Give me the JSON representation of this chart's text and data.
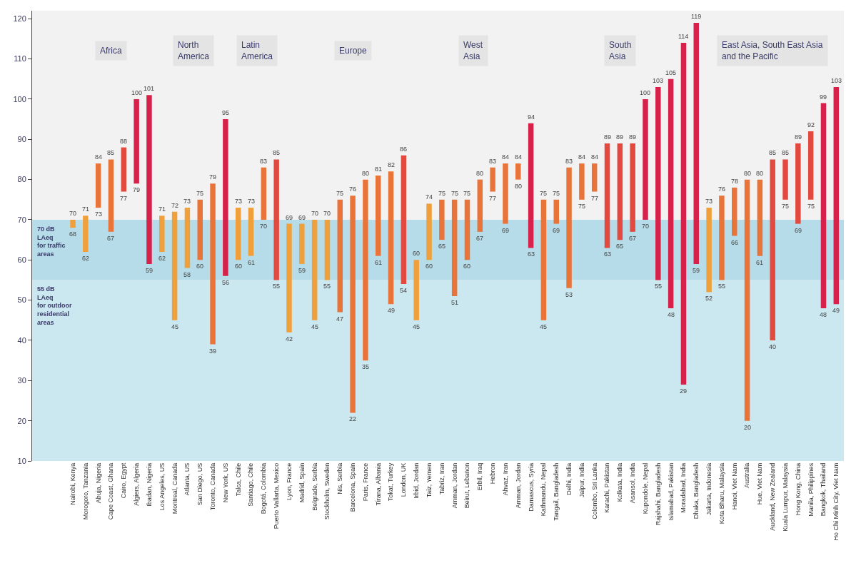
{
  "chart_data": {
    "type": "bar",
    "categories": [
      "Nairobi, Kenya",
      "Morogoro, Tanzania",
      "Abuja, Nigeria",
      "Cape Coast, Ghana",
      "Cairo, Egypt",
      "Algiers, Algeria",
      "Ibadan, Nigeria",
      "Los Angeles, US",
      "Montreal, Canada",
      "Atlanta, US",
      "San Diego, US",
      "Toronto, Canada",
      "New York, US",
      "Talca, Chile",
      "Santiago, Chile",
      "Bogotá, Colombia",
      "Puerto Vallarta, Mexico",
      "Lyon, France",
      "Madrid, Spain",
      "Belgrade, Serbia",
      "Stockholm, Sweden",
      "Nis, Serbia",
      "Barcelona, Spain",
      "Paris, France",
      "Tirana, Albania",
      "Tokat, Turkey",
      "London, UK",
      "Irbid, Jordan",
      "Taiz, Yemen",
      "Tabriz, Iran",
      "Amman, Jordan",
      "Beirut, Lebanon",
      "Erbil, Iraq",
      "Hebron",
      "Ahvaz, Iran",
      "Amman, Jordan",
      "Damascus, Syria",
      "Kathmandu, Nepal",
      "Tangail, Bangladesh",
      "Delhi, India",
      "Jaipur, India",
      "Colombo, Sri Lanka",
      "Karachi, Pakistan",
      "Kolkata, India",
      "Asansol, India",
      "Kupondole, Nepal",
      "Rajshahi, Bangladesh",
      "Islamabad, Pakistan",
      "Moradabad, India",
      "Dhaka, Bangladesh",
      "Jakarta, Indonesia",
      "Kota Bharu, Malaysia",
      "Hanoi, Viet Nam",
      "Australia",
      "Hue, Viet Nam",
      "Auckland, New Zealand",
      "Kuala Lumpur, Malaysia",
      "Hong Kong, China",
      "Manila, Philippines",
      "Bangkok, Thailand",
      "Ho Chi Minh City, Viet Nam"
    ],
    "base": [
      68,
      62,
      73,
      67,
      77,
      79,
      59,
      62,
      45,
      58,
      60,
      39,
      56,
      60,
      61,
      70,
      55,
      42,
      59,
      45,
      55,
      47,
      22,
      35,
      61,
      49,
      54,
      45,
      60,
      65,
      51,
      60,
      67,
      77,
      69,
      80,
      63,
      45,
      69,
      53,
      75,
      77,
      63,
      65,
      67,
      70,
      55,
      48,
      29,
      59,
      52,
      55,
      66,
      20,
      61,
      40,
      75,
      69,
      75,
      48,
      49
    ],
    "values": [
      2,
      9,
      11,
      18,
      11,
      21,
      42,
      9,
      27,
      15,
      15,
      40,
      39,
      13,
      12,
      13,
      30,
      27,
      10,
      25,
      15,
      28,
      54,
      45,
      20,
      33,
      32,
      15,
      14,
      10,
      24,
      15,
      13,
      6,
      15,
      4,
      31,
      30,
      6,
      30,
      9,
      7,
      26,
      24,
      22,
      30,
      48,
      57,
      85,
      60,
      21,
      21,
      12,
      60,
      19,
      45,
      10,
      20,
      17,
      51,
      54
    ],
    "colors": [
      "#f0a03a",
      "#f0a03a",
      "#e9743a",
      "#e9743a",
      "#e24a3f",
      "#d6224a",
      "#d6224a",
      "#f0a03a",
      "#f0a03a",
      "#f0a03a",
      "#e9743a",
      "#e9743a",
      "#d6224a",
      "#f0a03a",
      "#f0a03a",
      "#e9743a",
      "#e24a3f",
      "#f0a03a",
      "#f0a03a",
      "#f0a03a",
      "#f0a03a",
      "#e9743a",
      "#e9743a",
      "#e9743a",
      "#e9743a",
      "#e9743a",
      "#e24a3f",
      "#f0a03a",
      "#f0a03a",
      "#e9743a",
      "#e9743a",
      "#e9743a",
      "#e9743a",
      "#e9743a",
      "#e9743a",
      "#e9743a",
      "#d6224a",
      "#e9743a",
      "#e9743a",
      "#e9743a",
      "#e9743a",
      "#e9743a",
      "#e24a3f",
      "#e24a3f",
      "#e24a3f",
      "#d6224a",
      "#d6224a",
      "#d6224a",
      "#d6224a",
      "#d6224a",
      "#f0a03a",
      "#e9743a",
      "#e9743a",
      "#e9743a",
      "#e9743a",
      "#e24a3f",
      "#e24a3f",
      "#e24a3f",
      "#e24a3f",
      "#d6224a",
      "#d6224a"
    ],
    "grid": false,
    "ylim": [
      10,
      122
    ],
    "yticks": [
      10,
      20,
      30,
      40,
      50,
      60,
      70,
      80,
      90,
      100,
      110,
      120
    ],
    "bands": [
      {
        "axis": "y",
        "from": 55,
        "to": 70,
        "label": "70 dB\nLAeq\nfor traffic\nareas",
        "color": "#b5dce8"
      },
      {
        "axis": "y",
        "from": 10,
        "to": 55,
        "label": "55 dB\nLAeq\nfor outdoor\nresidential\nareas",
        "color": "#cbe7f0"
      }
    ],
    "annotations": [
      "Africa",
      "North\nAmerica",
      "Latin\nAmerica",
      "Europe",
      "West\nAsia",
      "South\nAsia",
      "East Asia, South East Asia\nand the Pacific",
      {
        "text": "70",
        "x": "Nairobi, Kenya",
        "y": 70
      },
      {
        "text": "68",
        "x": "Nairobi, Kenya",
        "y": 68
      },
      {
        "text": "71",
        "x": "Morogoro, Tanzania",
        "y": 71
      },
      {
        "text": "62",
        "x": "Morogoro, Tanzania",
        "y": 62
      },
      {
        "text": "84",
        "x": "Abuja, Nigeria",
        "y": 84
      },
      {
        "text": "73",
        "x": "Abuja, Nigeria",
        "y": 73
      },
      {
        "text": "85",
        "x": "Cape Coast, Ghana",
        "y": 85
      },
      {
        "text": "67",
        "x": "Cape Coast, Ghana",
        "y": 67
      },
      {
        "text": "88",
        "x": "Cairo, Egypt",
        "y": 88
      },
      {
        "text": "77",
        "x": "Cairo, Egypt",
        "y": 77
      },
      {
        "text": "100",
        "x": "Algiers, Algeria",
        "y": 100
      },
      {
        "text": "79",
        "x": "Algiers, Algeria",
        "y": 79
      },
      {
        "text": "101",
        "x": "Ibadan, Nigeria",
        "y": 101
      },
      {
        "text": "59",
        "x": "Ibadan, Nigeria",
        "y": 59
      },
      {
        "text": "71",
        "x": "Los Angeles, US",
        "y": 71
      },
      {
        "text": "62",
        "x": "Los Angeles, US",
        "y": 62
      },
      {
        "text": "72",
        "x": "Montreal, Canada",
        "y": 72
      },
      {
        "text": "45",
        "x": "Montreal, Canada",
        "y": 45
      },
      {
        "text": "73",
        "x": "Atlanta, US",
        "y": 73
      },
      {
        "text": "58",
        "x": "Atlanta, US",
        "y": 58
      },
      {
        "text": "75",
        "x": "San Diego, US",
        "y": 75
      },
      {
        "text": "60",
        "x": "San Diego, US",
        "y": 60
      },
      {
        "text": "79",
        "x": "Toronto, Canada",
        "y": 79
      },
      {
        "text": "39",
        "x": "Toronto, Canada",
        "y": 39
      },
      {
        "text": "95",
        "x": "New York, US",
        "y": 95
      },
      {
        "text": "56",
        "x": "New York, US",
        "y": 56
      },
      {
        "text": "73",
        "x": "Talca, Chile",
        "y": 73
      },
      {
        "text": "60",
        "x": "Talca, Chile",
        "y": 60
      },
      {
        "text": "73",
        "x": "Santiago, Chile",
        "y": 73
      },
      {
        "text": "61",
        "x": "Santiago, Chile",
        "y": 61
      },
      {
        "text": "83",
        "x": "Bogotá, Colombia",
        "y": 83
      },
      {
        "text": "70",
        "x": "Bogotá, Colombia",
        "y": 70
      },
      {
        "text": "85",
        "x": "Puerto Vallarta, Mexico",
        "y": 85
      },
      {
        "text": "55",
        "x": "Puerto Vallarta, Mexico",
        "y": 55
      },
      {
        "text": "69",
        "x": "Lyon, France",
        "y": 69
      },
      {
        "text": "42",
        "x": "Lyon, France",
        "y": 42
      },
      {
        "text": "69",
        "x": "Madrid, Spain",
        "y": 69
      },
      {
        "text": "59",
        "x": "Madrid, Spain",
        "y": 59
      },
      {
        "text": "70",
        "x": "Belgrade, Serbia",
        "y": 70
      },
      {
        "text": "45",
        "x": "Belgrade, Serbia",
        "y": 45
      },
      {
        "text": "70",
        "x": "Stockholm, Sweden",
        "y": 70
      },
      {
        "text": "55",
        "x": "Stockholm, Sweden",
        "y": 55
      },
      {
        "text": "75",
        "x": "Nis, Serbia",
        "y": 75
      },
      {
        "text": "47",
        "x": "Nis, Serbia",
        "y": 47
      },
      {
        "text": "76",
        "x": "Barcelona, Spain",
        "y": 76
      },
      {
        "text": "22",
        "x": "Barcelona, Spain",
        "y": 22
      },
      {
        "text": "80",
        "x": "Paris, France",
        "y": 80
      },
      {
        "text": "35",
        "x": "Paris, France",
        "y": 35
      },
      {
        "text": "81",
        "x": "Tirana, Albania",
        "y": 81
      },
      {
        "text": "61",
        "x": "Tirana, Albania",
        "y": 61
      },
      {
        "text": "82",
        "x": "Tokat, Turkey",
        "y": 82
      },
      {
        "text": "49",
        "x": "Tokat, Turkey",
        "y": 49
      },
      {
        "text": "86",
        "x": "London, UK",
        "y": 86
      },
      {
        "text": "54",
        "x": "London, UK",
        "y": 54
      },
      {
        "text": "60",
        "x": "Irbid, Jordan",
        "y": 60
      },
      {
        "text": "45",
        "x": "Irbid, Jordan",
        "y": 45
      },
      {
        "text": "74",
        "x": "Taiz, Yemen",
        "y": 74
      },
      {
        "text": "60",
        "x": "Taiz, Yemen",
        "y": 60
      },
      {
        "text": "75",
        "x": "Tabriz, Iran",
        "y": 75
      },
      {
        "text": "65",
        "x": "Tabriz, Iran",
        "y": 65
      },
      {
        "text": "75",
        "x": "Amman, Jordan",
        "y": 75
      },
      {
        "text": "51",
        "x": "Amman, Jordan",
        "y": 51
      },
      {
        "text": "75",
        "x": "Beirut, Lebanon",
        "y": 75
      },
      {
        "text": "60",
        "x": "Beirut, Lebanon",
        "y": 60
      },
      {
        "text": "80",
        "x": "Erbil, Iraq",
        "y": 80
      },
      {
        "text": "67",
        "x": "Erbil, Iraq",
        "y": 67
      },
      {
        "text": "83",
        "x": "Hebron",
        "y": 83
      },
      {
        "text": "77",
        "x": "Hebron",
        "y": 77
      },
      {
        "text": "84",
        "x": "Ahvaz, Iran",
        "y": 84
      },
      {
        "text": "69",
        "x": "Ahvaz, Iran",
        "y": 69
      },
      "84",
      "80",
      {
        "text": "94",
        "x": "Damascus, Syria",
        "y": 94
      },
      {
        "text": "63",
        "x": "Damascus, Syria",
        "y": 63
      },
      {
        "text": "75",
        "x": "Kathmandu, Nepal",
        "y": 75
      },
      {
        "text": "45",
        "x": "Kathmandu, Nepal",
        "y": 45
      },
      {
        "text": "75",
        "x": "Tangail, Bangladesh",
        "y": 75
      },
      {
        "text": "69",
        "x": "Tangail, Bangladesh",
        "y": 69
      },
      {
        "text": "83",
        "x": "Delhi, India",
        "y": 83
      },
      {
        "text": "53",
        "x": "Delhi, India",
        "y": 53
      },
      {
        "text": "84",
        "x": "Jaipur, India",
        "y": 84
      },
      {
        "text": "75",
        "x": "Jaipur, India",
        "y": 75
      },
      {
        "text": "84",
        "x": "Colombo, Sri Lanka",
        "y": 84
      },
      {
        "text": "77",
        "x": "Colombo, Sri Lanka",
        "y": 77
      },
      {
        "text": "89",
        "x": "Karachi, Pakistan",
        "y": 89
      },
      {
        "text": "63",
        "x": "Karachi, Pakistan",
        "y": 63
      },
      {
        "text": "89",
        "x": "Kolkata, India",
        "y": 89
      },
      {
        "text": "65",
        "x": "Kolkata, India",
        "y": 65
      },
      {
        "text": "89",
        "x": "Asansol, India",
        "y": 89
      },
      {
        "text": "67",
        "x": "Asansol, India",
        "y": 67
      },
      {
        "text": "100",
        "x": "Kupondole, Nepal",
        "y": 100
      },
      {
        "text": "70",
        "x": "Kupondole, Nepal",
        "y": 70
      },
      {
        "text": "103",
        "x": "Rajshahi, Bangladesh",
        "y": 103
      },
      {
        "text": "55",
        "x": "Rajshahi, Bangladesh",
        "y": 55
      },
      {
        "text": "105",
        "x": "Islamabad, Pakistan",
        "y": 105
      },
      {
        "text": "48",
        "x": "Islamabad, Pakistan",
        "y": 48
      },
      {
        "text": "114",
        "x": "Moradabad, India",
        "y": 114
      },
      {
        "text": "29",
        "x": "Moradabad, India",
        "y": 29
      },
      {
        "text": "119",
        "x": "Dhaka, Bangladesh",
        "y": 119
      },
      {
        "text": "59",
        "x": "Dhaka, Bangladesh",
        "y": 59
      },
      {
        "text": "73",
        "x": "Jakarta, Indonesia",
        "y": 73
      },
      {
        "text": "52",
        "x": "Jakarta, Indonesia",
        "y": 52
      },
      {
        "text": "76",
        "x": "Kota Bharu, Malaysia",
        "y": 76
      },
      {
        "text": "55",
        "x": "Kota Bharu, Malaysia",
        "y": 55
      },
      {
        "text": "78",
        "x": "Hanoi, Viet Nam",
        "y": 78
      },
      {
        "text": "66",
        "x": "Hanoi, Viet Nam",
        "y": 66
      },
      {
        "text": "80",
        "x": "Australia",
        "y": 80
      },
      {
        "text": "20",
        "x": "Australia",
        "y": 20
      },
      {
        "text": "80",
        "x": "Hue, Viet Nam",
        "y": 80
      },
      {
        "text": "61",
        "x": "Hue, Viet Nam",
        "y": 61
      },
      {
        "text": "85",
        "x": "Auckland, New Zealand",
        "y": 85
      },
      {
        "text": "40",
        "x": "Auckland, New Zealand",
        "y": 40
      },
      {
        "text": "85",
        "x": "Kuala Lumpur, Malaysia",
        "y": 85
      },
      {
        "text": "75",
        "x": "Kuala Lumpur, Malaysia",
        "y": 75
      },
      {
        "text": "89",
        "x": "Hong Kong, China",
        "y": 89
      },
      {
        "text": "69",
        "x": "Hong Kong, China",
        "y": 69
      },
      {
        "text": "92",
        "x": "Manila, Philippines",
        "y": 92
      },
      {
        "text": "75",
        "x": "Manila, Philippines",
        "y": 75
      },
      {
        "text": "99",
        "x": "Bangkok, Thailand",
        "y": 99
      },
      {
        "text": "48",
        "x": "Bangkok, Thailand",
        "y": 48
      },
      {
        "text": "103",
        "x": "Ho Chi Minh City, Viet Nam",
        "y": 103
      },
      {
        "text": "49",
        "x": "Ho Chi Minh City, Viet Nam",
        "y": 49
      }
    ]
  }
}
